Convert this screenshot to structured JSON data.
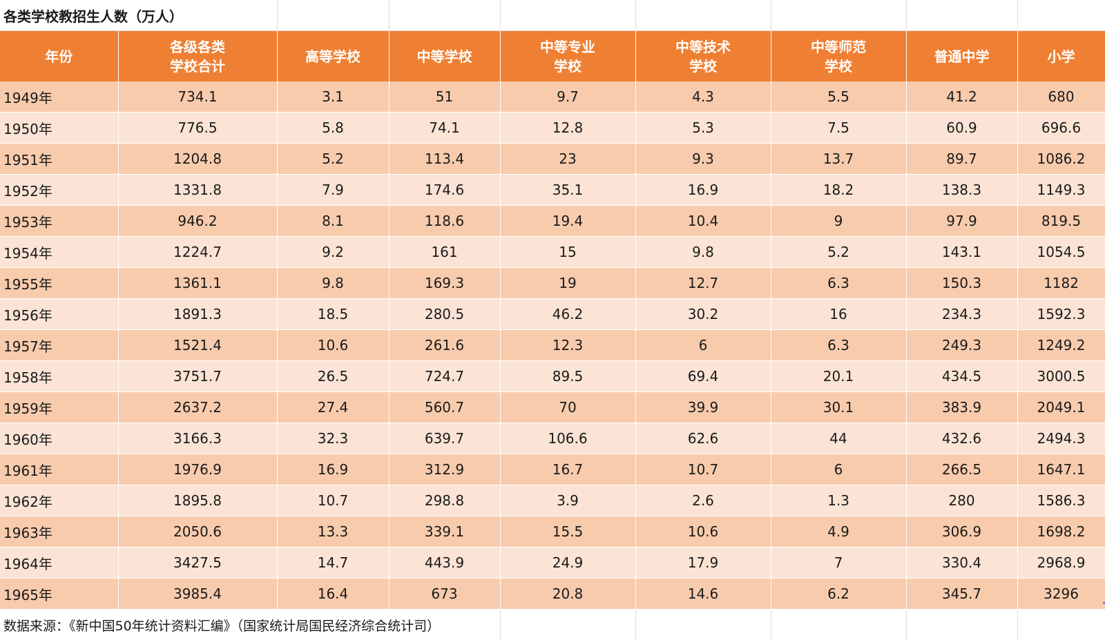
{
  "title": "各类学校教招生人数（万人）",
  "headers": [
    {
      "line1": "年份",
      "line2": ""
    },
    {
      "line1": "各级各类",
      "line2": "学校合计"
    },
    {
      "line1": "高等学校",
      "line2": ""
    },
    {
      "line1": "中等学校",
      "line2": ""
    },
    {
      "line1": "中等专业",
      "line2": "学校"
    },
    {
      "line1": "中等技术",
      "line2": "学校"
    },
    {
      "line1": "中等师范",
      "line2": "学校"
    },
    {
      "line1": "普通中学",
      "line2": ""
    },
    {
      "line1": "小学",
      "line2": ""
    }
  ],
  "rows": [
    [
      "1949年",
      "734.1",
      "3.1",
      "51",
      "9.7",
      "4.3",
      "5.5",
      "41.2",
      "680"
    ],
    [
      "1950年",
      "776.5",
      "5.8",
      "74.1",
      "12.8",
      "5.3",
      "7.5",
      "60.9",
      "696.6"
    ],
    [
      "1951年",
      "1204.8",
      "5.2",
      "113.4",
      "23",
      "9.3",
      "13.7",
      "89.7",
      "1086.2"
    ],
    [
      "1952年",
      "1331.8",
      "7.9",
      "174.6",
      "35.1",
      "16.9",
      "18.2",
      "138.3",
      "1149.3"
    ],
    [
      "1953年",
      "946.2",
      "8.1",
      "118.6",
      "19.4",
      "10.4",
      "9",
      "97.9",
      "819.5"
    ],
    [
      "1954年",
      "1224.7",
      "9.2",
      "161",
      "15",
      "9.8",
      "5.2",
      "143.1",
      "1054.5"
    ],
    [
      "1955年",
      "1361.1",
      "9.8",
      "169.3",
      "19",
      "12.7",
      "6.3",
      "150.3",
      "1182"
    ],
    [
      "1956年",
      "1891.3",
      "18.5",
      "280.5",
      "46.2",
      "30.2",
      "16",
      "234.3",
      "1592.3"
    ],
    [
      "1957年",
      "1521.4",
      "10.6",
      "261.6",
      "12.3",
      "6",
      "6.3",
      "249.3",
      "1249.2"
    ],
    [
      "1958年",
      "3751.7",
      "26.5",
      "724.7",
      "89.5",
      "69.4",
      "20.1",
      "434.5",
      "3000.5"
    ],
    [
      "1959年",
      "2637.2",
      "27.4",
      "560.7",
      "70",
      "39.9",
      "30.1",
      "383.9",
      "2049.1"
    ],
    [
      "1960年",
      "3166.3",
      "32.3",
      "639.7",
      "106.6",
      "62.6",
      "44",
      "432.6",
      "2494.3"
    ],
    [
      "1961年",
      "1976.9",
      "16.9",
      "312.9",
      "16.7",
      "10.7",
      "6",
      "266.5",
      "1647.1"
    ],
    [
      "1962年",
      "1895.8",
      "10.7",
      "298.8",
      "3.9",
      "2.6",
      "1.3",
      "280",
      "1586.3"
    ],
    [
      "1963年",
      "2050.6",
      "13.3",
      "339.1",
      "15.5",
      "10.6",
      "4.9",
      "306.9",
      "1698.2"
    ],
    [
      "1964年",
      "3427.5",
      "14.7",
      "443.9",
      "24.9",
      "17.9",
      "7",
      "330.4",
      "2968.9"
    ],
    [
      "1965年",
      "3985.4",
      "16.4",
      "673",
      "20.8",
      "14.6",
      "6.2",
      "345.7",
      "3296"
    ]
  ],
  "source": "数据来源：《新中国50年统计资料汇编》（国家统计局国民经济综合统计司）",
  "colors": {
    "header_bg": "#ef7f32",
    "row_odd_bg": "#f8cbad",
    "row_even_bg": "#fbe4d5",
    "header_text": "#ffffff"
  }
}
